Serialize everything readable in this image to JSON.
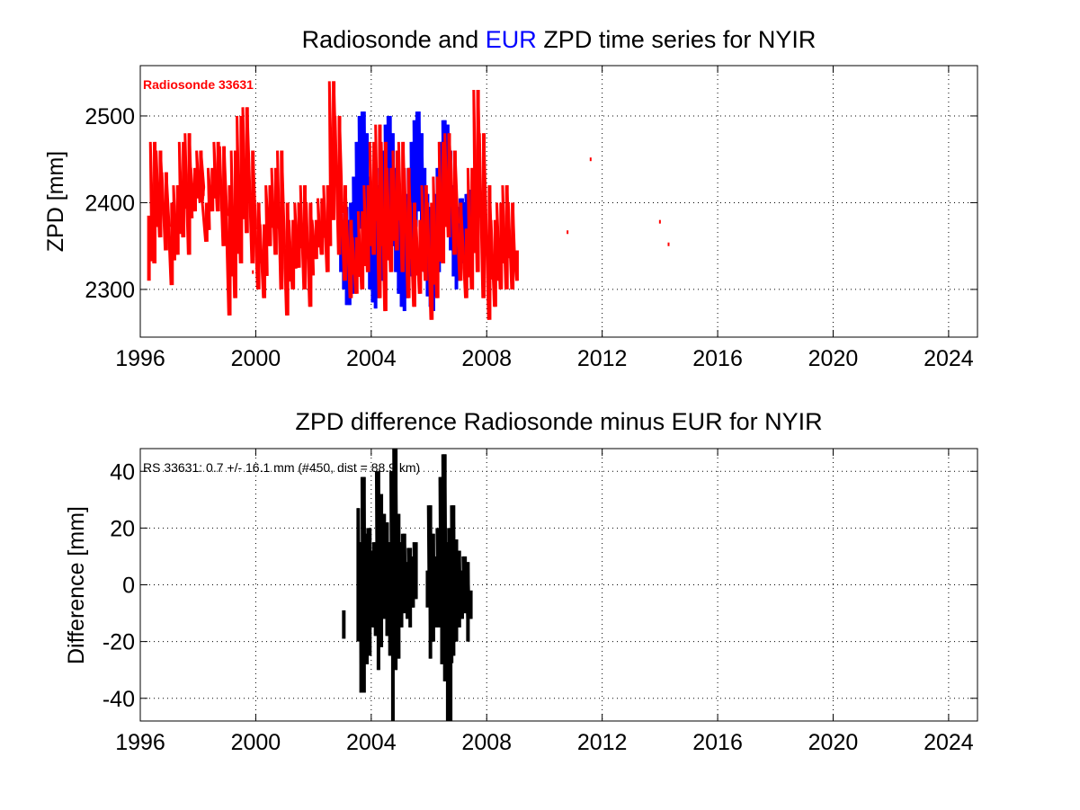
{
  "chart_data": [
    {
      "type": "line",
      "title_parts": [
        {
          "text": "Radiosonde and ",
          "color": "#000000"
        },
        {
          "text": "EUR",
          "color": "#0000ff"
        },
        {
          "text": " ZPD time series for NYIR",
          "color": "#000000"
        }
      ],
      "ylabel": "ZPD [mm]",
      "xlabel": "",
      "xlim": [
        1996,
        2025
      ],
      "ylim": [
        2245,
        2558
      ],
      "xticks": [
        1996,
        2000,
        2004,
        2008,
        2012,
        2016,
        2020,
        2024
      ],
      "yticks": [
        2300,
        2400,
        2500
      ],
      "grid": true,
      "annotation": {
        "text": "Radiosonde 33631",
        "color": "#ff0000",
        "placement": "top-left"
      },
      "series": [
        {
          "color": "#0000ff",
          "x": [
            2002.95,
            2003.05,
            2003.15,
            2003.25,
            2003.35,
            2003.45,
            2003.55,
            2003.65,
            2003.75,
            2003.85,
            2003.95,
            2004.05,
            2004.15,
            2004.25,
            2004.35,
            2004.45,
            2004.55,
            2004.65,
            2004.75,
            2004.85,
            2004.95,
            2005.05,
            2005.15,
            2005.25,
            2005.35,
            2005.45,
            2005.55,
            2005.65,
            2005.75,
            2005.85,
            2005.95,
            2006.05,
            2006.15,
            2006.25,
            2006.35,
            2006.45,
            2006.55,
            2006.65,
            2006.75,
            2006.85,
            2006.95,
            2007.05,
            2007.15,
            2007.25,
            2007.35,
            2007.45
          ],
          "y_low": [
            2320,
            2300,
            2282,
            2282,
            2295,
            2320,
            2345,
            2370,
            2360,
            2330,
            2300,
            2285,
            2278,
            2290,
            2310,
            2340,
            2365,
            2380,
            2350,
            2320,
            2295,
            2280,
            2275,
            2290,
            2315,
            2345,
            2372,
            2390,
            2360,
            2320,
            2292,
            2280,
            2275,
            2292,
            2320,
            2350,
            2380,
            2375,
            2345,
            2315,
            2300,
            2310,
            2330,
            2325,
            2340,
            2345
          ],
          "y_high": [
            2360,
            2380,
            2395,
            2380,
            2400,
            2430,
            2470,
            2500,
            2505,
            2480,
            2430,
            2410,
            2400,
            2420,
            2440,
            2460,
            2490,
            2500,
            2480,
            2440,
            2410,
            2395,
            2390,
            2410,
            2440,
            2470,
            2495,
            2505,
            2480,
            2440,
            2410,
            2395,
            2390,
            2410,
            2440,
            2470,
            2495,
            2490,
            2460,
            2420,
            2400,
            2395,
            2405,
            2400,
            2410,
            2415
          ]
        },
        {
          "color": "#ff0000",
          "x": [
            1996.3,
            1996.5,
            1996.7,
            1996.9,
            1997.1,
            1997.3,
            1997.5,
            1997.7,
            1997.9,
            1998.1,
            1998.3,
            1998.5,
            1998.7,
            1998.9,
            1999.1,
            1999.3,
            1999.5,
            1999.7,
            1999.9,
            2000.1,
            2000.3,
            2000.5,
            2000.7,
            2000.9,
            2001.1,
            2001.3,
            2001.5,
            2001.7,
            2001.9,
            2002.1,
            2002.3,
            2002.5,
            2002.7,
            2002.9,
            2003.1,
            2003.3,
            2003.5,
            2003.7,
            2003.9,
            2004.1,
            2004.3,
            2004.5,
            2004.7,
            2004.9,
            2005.1,
            2005.3,
            2005.5,
            2005.7,
            2005.9,
            2006.1,
            2006.3,
            2006.5,
            2006.7,
            2006.9,
            2007.1,
            2007.3,
            2007.5,
            2007.7,
            2007.9,
            2008.1,
            2008.3,
            2008.5,
            2008.7,
            2008.9,
            2009.05
          ],
          "y_low": [
            2310,
            2330,
            2360,
            2345,
            2305,
            2340,
            2360,
            2340,
            2390,
            2400,
            2355,
            2390,
            2390,
            2350,
            2270,
            2290,
            2330,
            2365,
            2330,
            2300,
            2290,
            2350,
            2340,
            2300,
            2270,
            2300,
            2325,
            2300,
            2280,
            2335,
            2340,
            2320,
            2380,
            2340,
            2310,
            2290,
            2295,
            2300,
            2320,
            2340,
            2290,
            2275,
            2320,
            2345,
            2320,
            2290,
            2280,
            2295,
            2310,
            2265,
            2290,
            2330,
            2360,
            2340,
            2310,
            2290,
            2300,
            2320,
            2290,
            2265,
            2280,
            2300,
            2300,
            2300,
            2310
          ],
          "y_high": [
            2385,
            2470,
            2460,
            2435,
            2400,
            2420,
            2470,
            2480,
            2440,
            2460,
            2400,
            2440,
            2470,
            2465,
            2420,
            2460,
            2500,
            2510,
            2460,
            2400,
            2375,
            2420,
            2440,
            2460,
            2400,
            2380,
            2400,
            2420,
            2400,
            2380,
            2405,
            2420,
            2540,
            2500,
            2420,
            2380,
            2360,
            2390,
            2420,
            2470,
            2490,
            2470,
            2440,
            2460,
            2470,
            2440,
            2400,
            2380,
            2420,
            2400,
            2430,
            2470,
            2480,
            2460,
            2400,
            2370,
            2440,
            2530,
            2480,
            2420,
            2380,
            2400,
            2420,
            2400,
            2345
          ],
          "isolated_points": [
            [
              2010.8,
              2366
            ],
            [
              2011.6,
              2450
            ],
            [
              2014.0,
              2378
            ],
            [
              2014.3,
              2352
            ],
            [
              1998.2,
              2410
            ],
            [
              2001.7,
              2395
            ],
            [
              1999.9,
              2320
            ]
          ]
        }
      ]
    },
    {
      "type": "line",
      "title": "ZPD difference Radiosonde minus EUR for NYIR",
      "ylabel": "Difference [mm]",
      "xlabel": "",
      "xlim": [
        1996,
        2025
      ],
      "ylim": [
        -48,
        48
      ],
      "xticks": [
        1996,
        2000,
        2004,
        2008,
        2012,
        2016,
        2020,
        2024
      ],
      "yticks": [
        -40,
        -20,
        0,
        20,
        40
      ],
      "grid": true,
      "annotation": {
        "text": "RS 33631: 0.7 +/- 16.1 mm (#450, dist =  88.9 km)",
        "color": "#000000",
        "placement": "top-left"
      },
      "series": [
        {
          "color": "#000000",
          "x": [
            2003.05,
            2003.55,
            2003.65,
            2003.75,
            2003.85,
            2003.95,
            2004.05,
            2004.15,
            2004.25,
            2004.35,
            2004.45,
            2004.55,
            2004.65,
            2004.75,
            2004.85,
            2004.95,
            2005.05,
            2005.15,
            2005.25,
            2005.35,
            2005.45,
            2005.55,
            2005.95,
            2006.05,
            2006.15,
            2006.25,
            2006.35,
            2006.45,
            2006.55,
            2006.65,
            2006.75,
            2006.85,
            2006.95,
            2007.05,
            2007.15,
            2007.25,
            2007.35,
            2007.45
          ],
          "y_low": [
            -19,
            -20,
            -38,
            -38,
            -28,
            -25,
            -15,
            -18,
            -30,
            -22,
            -12,
            -18,
            -25,
            -48,
            -30,
            -26,
            -15,
            -10,
            -12,
            -15,
            -8,
            -5,
            -8,
            -26,
            -20,
            -15,
            -15,
            -28,
            -34,
            -48,
            -48,
            -25,
            -20,
            -15,
            -12,
            -10,
            -20,
            -12
          ],
          "y_high": [
            -9,
            27,
            15,
            38,
            18,
            20,
            12,
            15,
            40,
            32,
            25,
            22,
            15,
            40,
            48,
            25,
            15,
            18,
            8,
            13,
            10,
            15,
            5,
            28,
            18,
            10,
            20,
            38,
            46,
            15,
            20,
            28,
            16,
            12,
            5,
            10,
            8,
            -2
          ]
        }
      ]
    }
  ]
}
